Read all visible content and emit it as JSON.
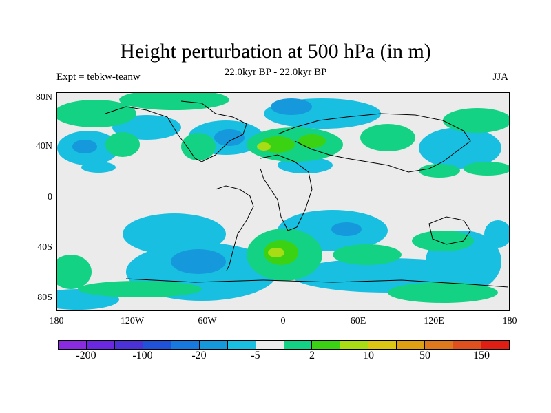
{
  "figure": {
    "title": "Height perturbation at 500 hPa (in m)",
    "subtitle": "22.0kyr BP - 22.0kyr BP",
    "left_label": "Expt = tebkw-teanw",
    "right_label": "JJA"
  },
  "map": {
    "projection": "cylindrical equidistant",
    "lon_range": [
      -180,
      180
    ],
    "lat_range": [
      -90,
      90
    ],
    "background_color": "#ebebeb",
    "coastlines": true
  },
  "axes": {
    "y_ticks": [
      "80N",
      "40N",
      "0",
      "40S",
      "80S"
    ],
    "x_ticks": [
      "180",
      "120W",
      "60W",
      "0",
      "60E",
      "120E",
      "180"
    ]
  },
  "colorbar": {
    "colors": [
      "#8a2be2",
      "#6a28e0",
      "#4b32d8",
      "#1f52d8",
      "#1778e0",
      "#1598dc",
      "#18bfe0",
      "#ebebeb",
      "#14d284",
      "#3cd214",
      "#a8dc14",
      "#dcc814",
      "#e0a014",
      "#e0781e",
      "#e0501e",
      "#e01e14"
    ],
    "labels": [
      "-200",
      "-100",
      "-20",
      "-5",
      "2",
      "10",
      "50",
      "150"
    ]
  }
}
